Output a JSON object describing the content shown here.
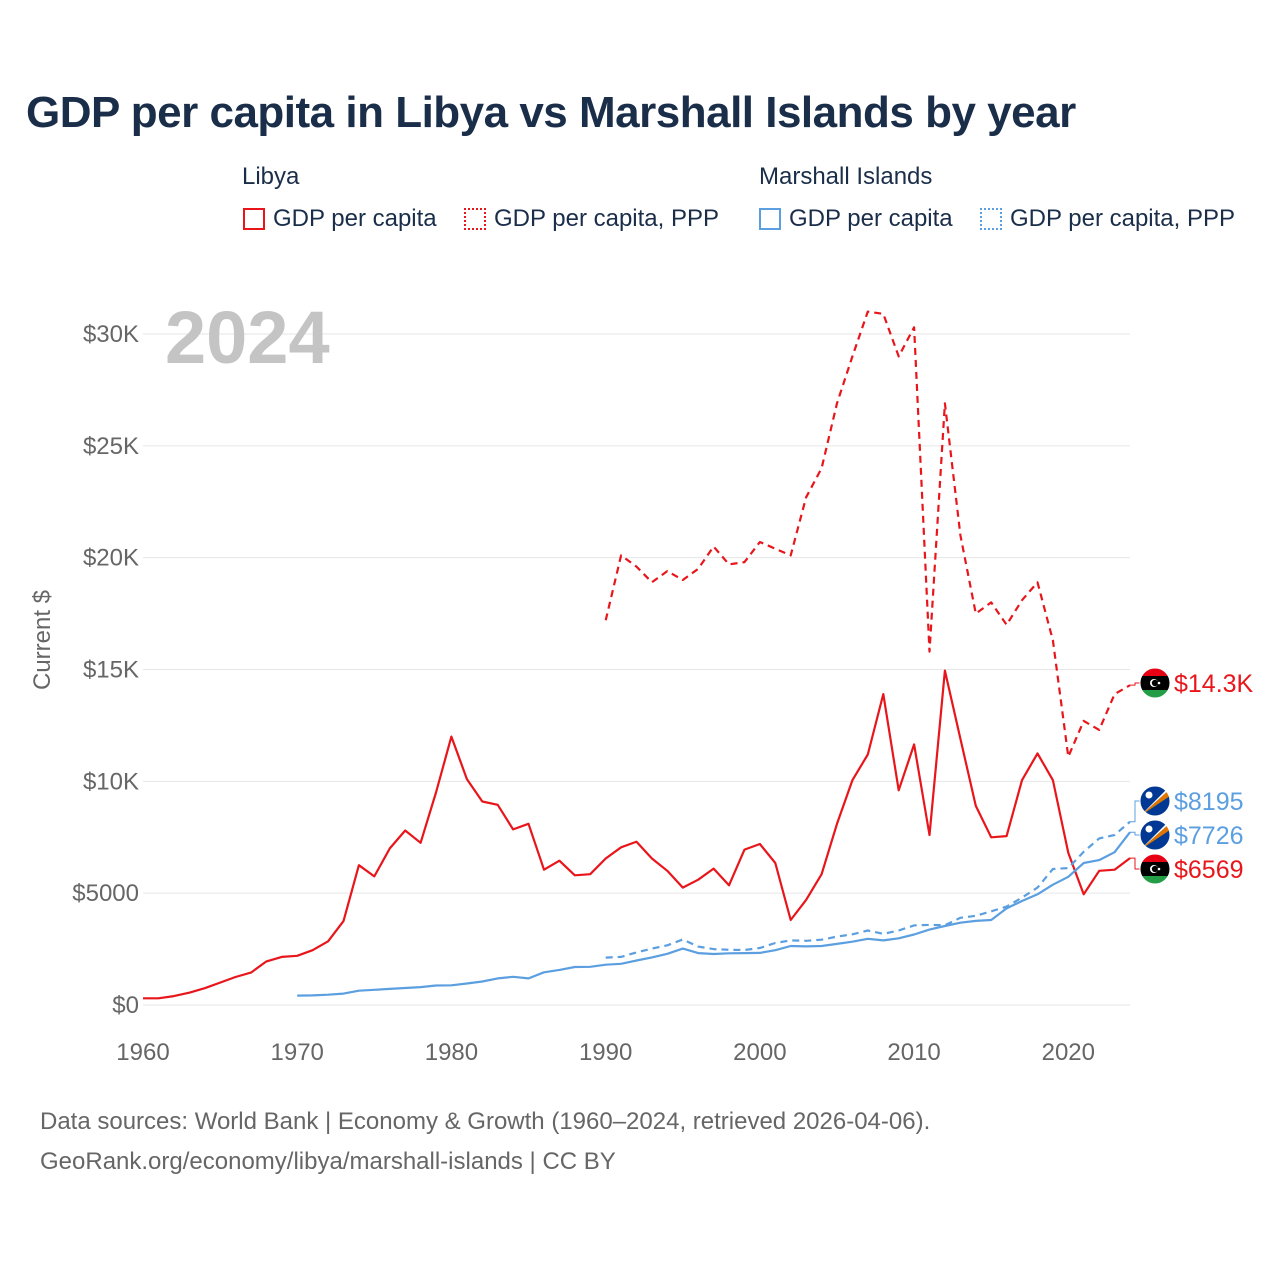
{
  "title": "GDP per capita in Libya vs Marshall Islands by year",
  "legend": {
    "groups": [
      {
        "name": "Libya",
        "color": "#e8161b",
        "items": [
          {
            "label": "GDP per capita",
            "style": "solid"
          },
          {
            "label": "GDP per capita, PPP",
            "style": "dotted"
          }
        ]
      },
      {
        "name": "Marshall Islands",
        "color": "#5b9fe0",
        "items": [
          {
            "label": "GDP per capita",
            "style": "solid"
          },
          {
            "label": "GDP per capita, PPP",
            "style": "dotted"
          }
        ]
      }
    ]
  },
  "footer": {
    "line1": "Data sources: World Bank | Economy & Growth (1960–2024, retrieved 2026-04-06).",
    "line2": "GeoRank.org/economy/libya/marshall-islands | CC BY"
  },
  "colors": {
    "libya": "#e8161b",
    "marshall": "#5b9fe0",
    "grid": "#e6e6e6",
    "tick": "#666666",
    "year": "#c4c4c4"
  },
  "chart_data": {
    "type": "line",
    "title": "GDP per capita in Libya vs Marshall Islands by year",
    "xlabel": "",
    "ylabel": "Current $",
    "year_label": "2024",
    "xlim": [
      1960,
      2024
    ],
    "ylim": [
      0,
      32000
    ],
    "xticks": [
      1960,
      1970,
      1980,
      1990,
      2000,
      2010,
      2020
    ],
    "xtick_labels": [
      "1960",
      "1970",
      "1980",
      "1990",
      "2000",
      "2010",
      "2020"
    ],
    "yticks": [
      0,
      5000,
      10000,
      15000,
      20000,
      25000,
      30000
    ],
    "ytick_labels": [
      "$0",
      "$5000",
      "$10K",
      "$15K",
      "$20K",
      "$25K",
      "$30K"
    ],
    "series": [
      {
        "name": "Libya GDP per capita",
        "country": "libya",
        "style": "solid",
        "end_label": "$6569",
        "x": [
          1960,
          1961,
          1962,
          1963,
          1964,
          1965,
          1966,
          1967,
          1968,
          1969,
          1970,
          1971,
          1972,
          1973,
          1974,
          1975,
          1976,
          1977,
          1978,
          1979,
          1980,
          1981,
          1982,
          1983,
          1984,
          1985,
          1986,
          1987,
          1988,
          1989,
          1990,
          1991,
          1992,
          1993,
          1994,
          1995,
          1996,
          1997,
          1998,
          1999,
          2000,
          2001,
          2002,
          2003,
          2004,
          2005,
          2006,
          2007,
          2008,
          2009,
          2010,
          2011,
          2012,
          2013,
          2014,
          2015,
          2016,
          2017,
          2018,
          2019,
          2020,
          2021,
          2022,
          2023,
          2024
        ],
        "values": [
          300,
          300,
          400,
          550,
          750,
          1000,
          1250,
          1450,
          1950,
          2150,
          2200,
          2450,
          2850,
          3750,
          6250,
          5750,
          7000,
          7800,
          7250,
          9500,
          12000,
          10100,
          9100,
          8950,
          7850,
          8100,
          6050,
          6450,
          5800,
          5850,
          6550,
          7050,
          7300,
          6550,
          6000,
          5250,
          5600,
          6100,
          5350,
          6950,
          7200,
          6350,
          3800,
          4700,
          5850,
          8100,
          10050,
          11200,
          13900,
          9600,
          11650,
          7600,
          14950,
          11900,
          8900,
          7500,
          7550,
          10050,
          11250,
          10050,
          6800,
          4950,
          6000,
          6050,
          6569
        ]
      },
      {
        "name": "Libya GDP per capita, PPP",
        "country": "libya",
        "style": "dashed",
        "end_label": "$14.3K",
        "x": [
          1990,
          1991,
          1992,
          1993,
          1994,
          1995,
          1996,
          1997,
          1998,
          1999,
          2000,
          2001,
          2002,
          2003,
          2004,
          2005,
          2006,
          2007,
          2008,
          2009,
          2010,
          2011,
          2012,
          2013,
          2014,
          2015,
          2016,
          2017,
          2018,
          2019,
          2020,
          2021,
          2022,
          2023,
          2024
        ],
        "values": [
          17200,
          20100,
          19600,
          18900,
          19400,
          19000,
          19500,
          20500,
          19700,
          19800,
          20700,
          20400,
          20100,
          22700,
          24000,
          26900,
          29000,
          31000,
          30900,
          29000,
          30300,
          15800,
          26900,
          21000,
          17500,
          18000,
          17000,
          18100,
          18900,
          16300,
          11100,
          12700,
          12300,
          13900,
          14300
        ]
      },
      {
        "name": "Marshall Islands GDP per capita",
        "country": "marshall",
        "style": "solid",
        "end_label": "$7726",
        "x": [
          1970,
          1971,
          1972,
          1973,
          1974,
          1975,
          1976,
          1977,
          1978,
          1979,
          1980,
          1981,
          1982,
          1983,
          1984,
          1985,
          1986,
          1987,
          1988,
          1989,
          1990,
          1991,
          1992,
          1993,
          1994,
          1995,
          1996,
          1997,
          1998,
          1999,
          2000,
          2001,
          2002,
          2003,
          2004,
          2005,
          2006,
          2007,
          2008,
          2009,
          2010,
          2011,
          2012,
          2013,
          2014,
          2015,
          2016,
          2017,
          2018,
          2019,
          2020,
          2021,
          2022,
          2023,
          2024
        ],
        "values": [
          420,
          430,
          460,
          510,
          640,
          680,
          720,
          760,
          800,
          870,
          880,
          960,
          1050,
          1190,
          1260,
          1190,
          1460,
          1570,
          1700,
          1710,
          1800,
          1840,
          1990,
          2130,
          2290,
          2520,
          2320,
          2280,
          2310,
          2320,
          2330,
          2450,
          2640,
          2620,
          2640,
          2730,
          2830,
          2960,
          2890,
          2980,
          3150,
          3370,
          3530,
          3680,
          3760,
          3800,
          4320,
          4650,
          4950,
          5380,
          5730,
          6350,
          6480,
          6830,
          7726
        ]
      },
      {
        "name": "Marshall Islands GDP per capita, PPP",
        "country": "marshall",
        "style": "dashed",
        "end_label": "$8195",
        "x": [
          1990,
          1991,
          1992,
          1993,
          1994,
          1995,
          1996,
          1997,
          1998,
          1999,
          2000,
          2001,
          2002,
          2003,
          2004,
          2005,
          2006,
          2007,
          2008,
          2009,
          2010,
          2011,
          2012,
          2013,
          2014,
          2015,
          2016,
          2017,
          2018,
          2019,
          2020,
          2021,
          2022,
          2023,
          2024
        ],
        "values": [
          2120,
          2150,
          2350,
          2520,
          2670,
          2930,
          2610,
          2500,
          2470,
          2460,
          2550,
          2770,
          2890,
          2870,
          2920,
          3060,
          3160,
          3330,
          3180,
          3330,
          3560,
          3580,
          3570,
          3900,
          3990,
          4190,
          4400,
          4800,
          5250,
          6080,
          6120,
          6850,
          7450,
          7600,
          8195
        ]
      }
    ]
  }
}
